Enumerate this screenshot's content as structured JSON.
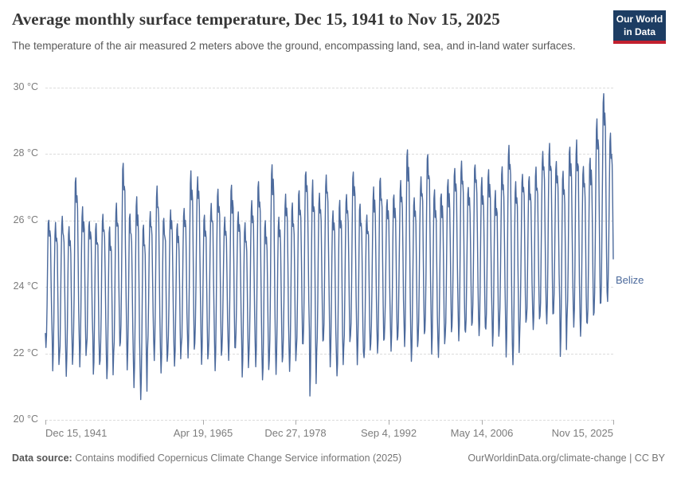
{
  "header": {
    "title": "Average monthly surface temperature, Dec 15, 1941 to Nov 15, 2025",
    "subtitle": "The temperature of the air measured 2 meters above the ground, encompassing land, sea, and in-land water surfaces.",
    "logo": {
      "line1": "Our World",
      "line2": "in Data",
      "bg_color": "#1d3d63",
      "accent_color": "#c2202f"
    }
  },
  "chart_data": {
    "type": "line",
    "title": "Average monthly surface temperature, Dec 15, 1941 to Nov 15, 2025",
    "entity": "Belize",
    "unit": "°C",
    "line_color": "#4C6A9C",
    "grid": true,
    "legend_position": "right-of-line-end",
    "ylim": [
      20,
      30
    ],
    "yticks": [
      {
        "value": 30,
        "label": "30 °C"
      },
      {
        "value": 28,
        "label": "28 °C"
      },
      {
        "value": 26,
        "label": "26 °C"
      },
      {
        "value": 24,
        "label": "24 °C"
      },
      {
        "value": 22,
        "label": "22 °C"
      },
      {
        "value": 20,
        "label": "20 °C"
      }
    ],
    "x_range": [
      1941.958,
      2025.874
    ],
    "xticks": [
      {
        "date": "Dec 15, 1941",
        "t": 1941.958
      },
      {
        "date": "Apr 19, 1965",
        "t": 1965.3
      },
      {
        "date": "Dec 27, 1978",
        "t": 1978.99
      },
      {
        "date": "Sep 4, 1992",
        "t": 1992.68
      },
      {
        "date": "May 14, 2006",
        "t": 2006.37
      },
      {
        "date": "Nov 15, 2025",
        "t": 2025.874
      }
    ],
    "start_point": {
      "t": 1941.958,
      "value": 22.6
    },
    "seasonal_shape_jan_to_dec": [
      0.0,
      0.1,
      0.35,
      0.68,
      0.95,
      1.0,
      0.86,
      0.9,
      0.84,
      0.55,
      0.26,
      0.06
    ],
    "series": [
      {
        "name": "Belize",
        "annual_envelope": [
          [
            1942,
            22.2,
            26.0
          ],
          [
            1943,
            21.5,
            25.9
          ],
          [
            1944,
            21.9,
            26.1
          ],
          [
            1945,
            21.3,
            25.8
          ],
          [
            1946,
            22.0,
            27.3
          ],
          [
            1947,
            21.6,
            26.4
          ],
          [
            1948,
            22.2,
            26.0
          ],
          [
            1949,
            21.4,
            25.9
          ],
          [
            1950,
            21.8,
            26.2
          ],
          [
            1951,
            21.2,
            25.8
          ],
          [
            1952,
            22.0,
            26.5
          ],
          [
            1953,
            22.3,
            27.7
          ],
          [
            1954,
            21.5,
            26.2
          ],
          [
            1955,
            21.0,
            26.7
          ],
          [
            1956,
            20.6,
            25.9
          ],
          [
            1957,
            22.1,
            26.3
          ],
          [
            1958,
            21.8,
            27.0
          ],
          [
            1959,
            21.4,
            26.1
          ],
          [
            1960,
            22.0,
            26.3
          ],
          [
            1961,
            21.6,
            25.9
          ],
          [
            1962,
            22.2,
            26.4
          ],
          [
            1963,
            21.9,
            27.5
          ],
          [
            1964,
            22.3,
            27.3
          ],
          [
            1965,
            21.7,
            26.2
          ],
          [
            1966,
            22.0,
            26.5
          ],
          [
            1967,
            21.5,
            26.9
          ],
          [
            1968,
            22.1,
            26.1
          ],
          [
            1969,
            21.8,
            27.1
          ],
          [
            1970,
            22.2,
            26.3
          ],
          [
            1971,
            21.3,
            25.9
          ],
          [
            1972,
            22.0,
            26.6
          ],
          [
            1973,
            21.6,
            27.2
          ],
          [
            1974,
            21.2,
            26.0
          ],
          [
            1975,
            21.8,
            27.7
          ],
          [
            1976,
            21.4,
            26.1
          ],
          [
            1977,
            21.9,
            26.8
          ],
          [
            1978,
            21.5,
            26.5
          ],
          [
            1979,
            22.1,
            26.9
          ],
          [
            1980,
            22.3,
            27.5
          ],
          [
            1981,
            20.7,
            27.2
          ],
          [
            1982,
            22.0,
            26.8
          ],
          [
            1983,
            22.4,
            27.4
          ],
          [
            1984,
            21.6,
            26.3
          ],
          [
            1985,
            21.3,
            26.6
          ],
          [
            1986,
            22.2,
            26.8
          ],
          [
            1987,
            22.5,
            27.5
          ],
          [
            1988,
            21.7,
            26.5
          ],
          [
            1989,
            21.9,
            26.2
          ],
          [
            1990,
            22.3,
            27.0
          ],
          [
            1991,
            22.0,
            27.3
          ],
          [
            1992,
            22.4,
            26.6
          ],
          [
            1993,
            22.1,
            26.8
          ],
          [
            1994,
            22.5,
            27.2
          ],
          [
            1995,
            22.2,
            28.1
          ],
          [
            1996,
            21.8,
            26.7
          ],
          [
            1997,
            22.4,
            27.3
          ],
          [
            1998,
            22.7,
            28.0
          ],
          [
            1999,
            22.0,
            26.9
          ],
          [
            2000,
            21.9,
            26.8
          ],
          [
            2001,
            22.5,
            27.2
          ],
          [
            2002,
            22.8,
            27.6
          ],
          [
            2003,
            22.4,
            27.8
          ],
          [
            2004,
            22.6,
            27.0
          ],
          [
            2005,
            22.9,
            27.7
          ],
          [
            2006,
            22.5,
            27.3
          ],
          [
            2007,
            22.7,
            27.5
          ],
          [
            2008,
            22.2,
            26.9
          ],
          [
            2009,
            22.8,
            27.6
          ],
          [
            2010,
            21.9,
            28.3
          ],
          [
            2011,
            21.7,
            27.2
          ],
          [
            2012,
            22.6,
            27.4
          ],
          [
            2013,
            23.0,
            27.3
          ],
          [
            2014,
            22.7,
            27.6
          ],
          [
            2015,
            23.1,
            28.1
          ],
          [
            2016,
            22.9,
            28.3
          ],
          [
            2017,
            23.2,
            27.8
          ],
          [
            2018,
            21.9,
            27.5
          ],
          [
            2019,
            23.0,
            28.2
          ],
          [
            2020,
            22.8,
            28.4
          ],
          [
            2021,
            22.5,
            27.6
          ],
          [
            2022,
            22.9,
            27.9
          ],
          [
            2023,
            23.2,
            29.1
          ],
          [
            2024,
            23.5,
            29.8
          ],
          [
            2025,
            23.6,
            28.6
          ]
        ]
      }
    ]
  },
  "footer": {
    "source_label": "Data source:",
    "source_text": " Contains modified Copernicus Climate Change Service information (2025)",
    "url": "OurWorldinData.org/climate-change",
    "separator": " | ",
    "license": "CC BY"
  }
}
